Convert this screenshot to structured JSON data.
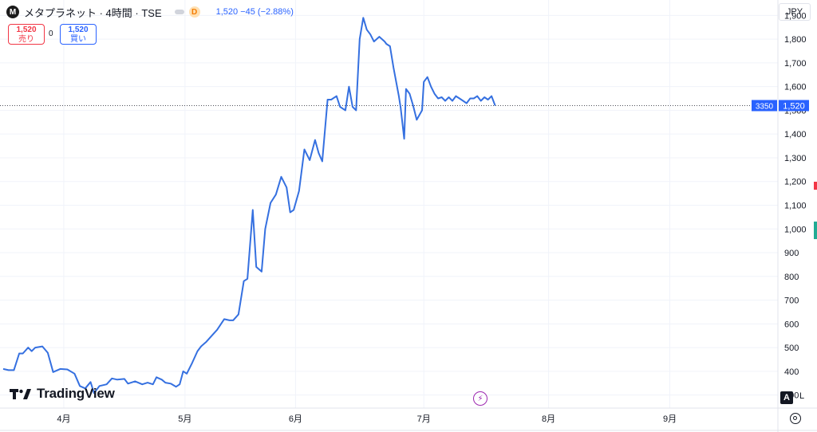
{
  "header": {
    "symbol_letter": "M",
    "symbol_name": "メタプラネット · 4時間 · TSE",
    "d_badge": "D",
    "price_info": "1,520 −45 (−2.88%)"
  },
  "trade": {
    "sell_price": "1,520",
    "sell_label": "売り",
    "spread": "0",
    "buy_price": "1,520",
    "buy_label": "買い"
  },
  "currency": "JPY",
  "price_tag": {
    "left": "3350",
    "price": "1,520"
  },
  "brand": {
    "logo_text": "TradingView"
  },
  "scale_buttons": {
    "auto": "A",
    "log": "L"
  },
  "colors": {
    "line": "#3570e0",
    "tag": "#2962ff",
    "grid": "#f0f3fa",
    "sell": "#f23645",
    "buy": "#2962ff"
  },
  "chart_data": {
    "type": "line",
    "title": "",
    "xlabel": "",
    "ylabel": "",
    "ylim": [
      245,
      1965
    ],
    "y_ticks": [
      300,
      400,
      500,
      600,
      700,
      800,
      900,
      1000,
      1100,
      1200,
      1300,
      1400,
      1500,
      1600,
      1700,
      1800,
      1900
    ],
    "y_tick_labels": [
      "300",
      "400",
      "500",
      "600",
      "700",
      "800",
      "900",
      "1,000",
      "1,100",
      "1,200",
      "1,300",
      "1,400",
      "1,500",
      "1,600",
      "1,700",
      "1,800",
      "1,900"
    ],
    "x_months": [
      {
        "label": "4月",
        "day": 17
      },
      {
        "label": "5月",
        "day": 51
      },
      {
        "label": "6月",
        "day": 82
      },
      {
        "label": "7月",
        "day": 118
      },
      {
        "label": "8月",
        "day": 153
      },
      {
        "label": "9月",
        "day": 187
      }
    ],
    "last_price": 1520,
    "series": [
      {
        "values": [
          [
            0,
            410
          ],
          [
            1.5,
            405
          ],
          [
            3,
            405
          ],
          [
            4.5,
            475
          ],
          [
            5.5,
            475
          ],
          [
            7,
            500
          ],
          [
            8,
            485
          ],
          [
            9,
            500
          ],
          [
            11,
            505
          ],
          [
            12.5,
            478
          ],
          [
            14,
            397
          ],
          [
            16,
            410
          ],
          [
            18,
            408
          ],
          [
            20,
            390
          ],
          [
            21.5,
            338
          ],
          [
            23,
            328
          ],
          [
            24.5,
            355
          ],
          [
            25.5,
            308
          ],
          [
            27,
            338
          ],
          [
            29,
            345
          ],
          [
            30.5,
            370
          ],
          [
            32,
            365
          ],
          [
            34,
            368
          ],
          [
            35,
            348
          ],
          [
            37,
            358
          ],
          [
            39,
            345
          ],
          [
            40.5,
            352
          ],
          [
            42,
            345
          ],
          [
            43,
            375
          ],
          [
            44.5,
            365
          ],
          [
            45.5,
            352
          ],
          [
            47,
            348
          ],
          [
            48.5,
            335
          ],
          [
            49.5,
            345
          ],
          [
            50.5,
            400
          ],
          [
            51.5,
            390
          ],
          [
            53,
            435
          ],
          [
            54.5,
            485
          ],
          [
            55.5,
            505
          ],
          [
            57,
            525
          ],
          [
            58.5,
            550
          ],
          [
            60,
            575
          ],
          [
            62,
            620
          ],
          [
            63.5,
            615
          ],
          [
            64.5,
            615
          ],
          [
            66,
            640
          ],
          [
            67.5,
            780
          ],
          [
            68.5,
            790
          ],
          [
            70,
            1080
          ],
          [
            71,
            840
          ],
          [
            72.5,
            820
          ],
          [
            73.5,
            1000
          ],
          [
            75,
            1110
          ],
          [
            76.5,
            1145
          ],
          [
            78,
            1220
          ],
          [
            79.5,
            1175
          ],
          [
            80.5,
            1070
          ],
          [
            81.5,
            1080
          ],
          [
            83,
            1160
          ],
          [
            84.5,
            1335
          ],
          [
            86,
            1290
          ],
          [
            87.5,
            1375
          ],
          [
            88.5,
            1320
          ],
          [
            89.5,
            1285
          ],
          [
            91,
            1545
          ],
          [
            92,
            1545
          ],
          [
            93.5,
            1560
          ],
          [
            94.5,
            1515
          ],
          [
            96,
            1500
          ],
          [
            97,
            1600
          ],
          [
            98,
            1515
          ],
          [
            99,
            1500
          ],
          [
            100,
            1800
          ],
          [
            101,
            1890
          ],
          [
            102,
            1840
          ],
          [
            103,
            1820
          ],
          [
            104,
            1790
          ],
          [
            105.5,
            1810
          ],
          [
            107,
            1790
          ],
          [
            107.5,
            1780
          ],
          [
            108.5,
            1770
          ],
          [
            109.5,
            1680
          ],
          [
            111,
            1560
          ],
          [
            111.5,
            1510
          ],
          [
            112.5,
            1380
          ],
          [
            113,
            1590
          ],
          [
            114,
            1570
          ],
          [
            115,
            1520
          ],
          [
            116,
            1460
          ],
          [
            117.5,
            1500
          ],
          [
            118,
            1620
          ],
          [
            119,
            1640
          ],
          [
            120,
            1600
          ],
          [
            121,
            1570
          ],
          [
            122,
            1550
          ],
          [
            123,
            1555
          ],
          [
            124,
            1540
          ],
          [
            125,
            1555
          ],
          [
            126,
            1540
          ],
          [
            127,
            1560
          ],
          [
            128,
            1550
          ],
          [
            129,
            1540
          ],
          [
            130,
            1530
          ],
          [
            131,
            1550
          ],
          [
            132,
            1550
          ],
          [
            133,
            1560
          ],
          [
            134,
            1540
          ],
          [
            135,
            1555
          ],
          [
            136,
            1545
          ],
          [
            137,
            1560
          ],
          [
            138,
            1520
          ]
        ]
      }
    ]
  }
}
